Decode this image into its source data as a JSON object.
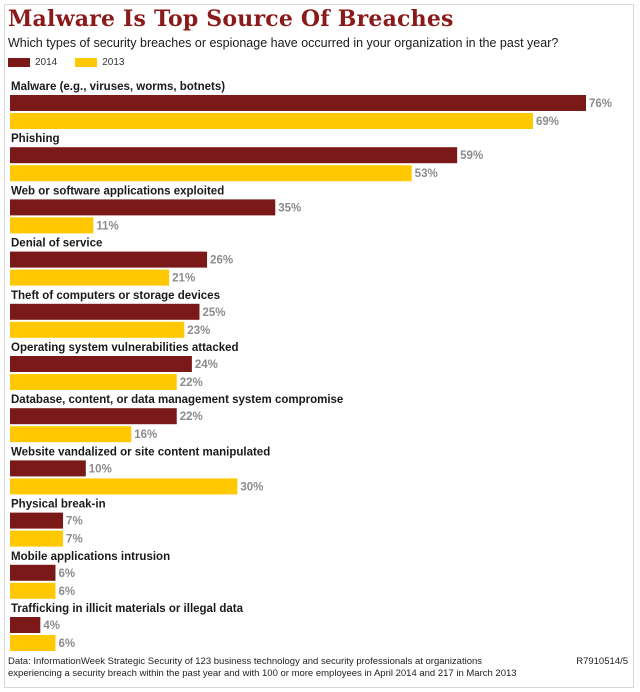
{
  "chart_data": {
    "type": "bar",
    "orientation": "horizontal",
    "title": "Malware Is Top Source Of Breaches",
    "subtitle": "Which types of security breaches or espionage have occurred in your organization in the past year?",
    "categories": [
      "Malware (e.g., viruses, worms, botnets)",
      "Phishing",
      "Web or software applications exploited",
      "Denial of service",
      "Theft of computers or storage devices",
      "Operating system vulnerabilities attacked",
      "Database, content, or data management system compromise",
      "Website vandalized or site content manipulated",
      "Physical break-in",
      "Mobile applications intrusion",
      "Trafficking in illicit materials or illegal data"
    ],
    "series": [
      {
        "name": "2014",
        "color": "#7b1818",
        "values": [
          76,
          59,
          35,
          26,
          25,
          24,
          22,
          10,
          7,
          6,
          4
        ]
      },
      {
        "name": "2013",
        "color": "#ffc800",
        "values": [
          69,
          53,
          11,
          21,
          23,
          22,
          16,
          30,
          7,
          6,
          6
        ]
      }
    ],
    "value_suffix": "%",
    "xlim": [
      0,
      76
    ],
    "grid": false,
    "legend": "top-left",
    "label_color": "#8c8c8c"
  },
  "footer": {
    "source": "Data: InformationWeek Strategic Security of 123 business technology and security professionals at organizations experiencing a security breach within the past year and with 100 or more employees in April 2014 and 217 in March 2013",
    "code": "R7910514/5"
  }
}
